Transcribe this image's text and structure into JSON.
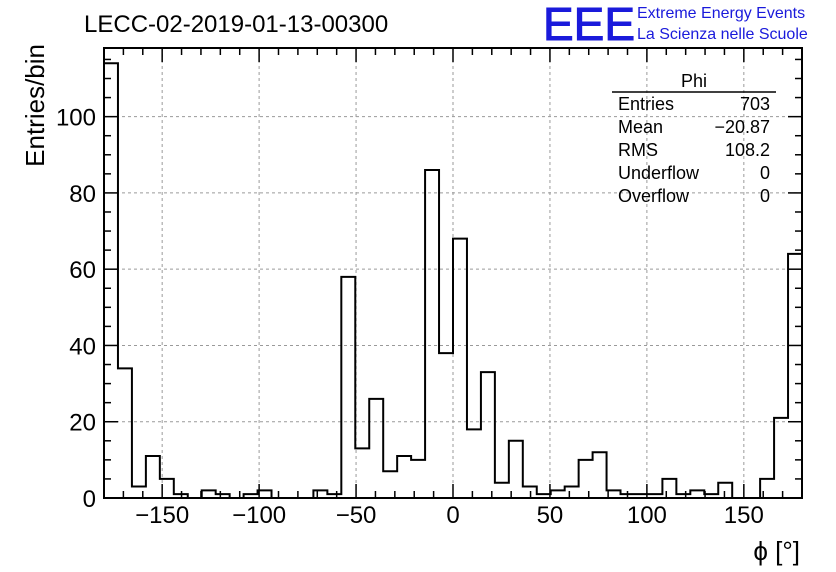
{
  "chart_data": {
    "type": "bar",
    "title": "LECC-02-2019-01-13-00300",
    "xlabel": "ϕ [°]",
    "ylabel": "Entries/bin",
    "xlim": [
      -180,
      180
    ],
    "ylim": [
      0,
      118
    ],
    "bin_width": 7.2,
    "grid": true,
    "x_ticks": [
      "−150",
      "−100",
      "−50",
      "0",
      "50",
      "100",
      "150"
    ],
    "x_tick_values": [
      -150,
      -100,
      -50,
      0,
      50,
      100,
      150
    ],
    "y_ticks": [
      "0",
      "20",
      "40",
      "60",
      "80",
      "100"
    ],
    "y_tick_values": [
      0,
      20,
      40,
      60,
      80,
      100
    ],
    "values": [
      114,
      34,
      3,
      11,
      5,
      1,
      0,
      2,
      1,
      0,
      1,
      2,
      0,
      0,
      0,
      2,
      1,
      58,
      13,
      26,
      7,
      11,
      10,
      86,
      38,
      68,
      18,
      33,
      4,
      15,
      3,
      1,
      2,
      3,
      10,
      12,
      2,
      1,
      1,
      1,
      5,
      1,
      2,
      1,
      4,
      0,
      0,
      5,
      21,
      64
    ],
    "stats_box": {
      "name": "Phi",
      "rows": [
        {
          "label": "Entries",
          "value": "703"
        },
        {
          "label": "Mean",
          "value": "−20.87"
        },
        {
          "label": "RMS",
          "value": "108.2"
        },
        {
          "label": "Underflow",
          "value": "0"
        },
        {
          "label": "Overflow",
          "value": "0"
        }
      ]
    },
    "colors": {
      "line": "#000000",
      "grid": "#9a9a9a",
      "logo": "#1a1adb"
    }
  },
  "logo": {
    "text": "EEE",
    "line1": "Extreme Energy Events",
    "line2": "La Scienza nelle Scuole"
  }
}
